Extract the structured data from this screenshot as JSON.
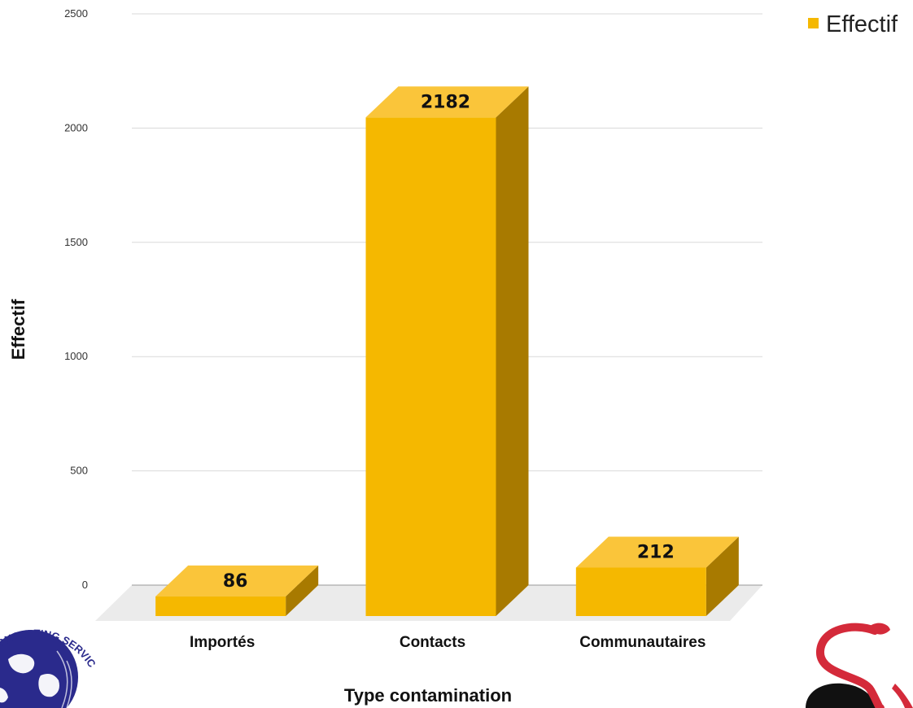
{
  "chart_data": {
    "type": "bar",
    "style": "3d",
    "categories": [
      "Importés",
      "Contacts",
      "Communautaires"
    ],
    "series": [
      {
        "name": "Effectif",
        "values": [
          86,
          2182,
          212
        ],
        "color": "#F5B800"
      }
    ],
    "data_labels": [
      "86",
      "2182",
      "212"
    ],
    "xlabel": "Type contamination",
    "ylabel": "Effectif",
    "ylim": [
      0,
      2500
    ],
    "yticks": [
      0,
      500,
      1000,
      1500,
      2000,
      2500
    ],
    "grid": true,
    "legend_position": "top-right"
  },
  "logos": {
    "left": {
      "text": "CONSULTING SERVICES",
      "icon": "globe-icon",
      "color": "#2A2A8C"
    },
    "right": {
      "icon": "serpent-icon",
      "color": "#D42A3A"
    }
  }
}
